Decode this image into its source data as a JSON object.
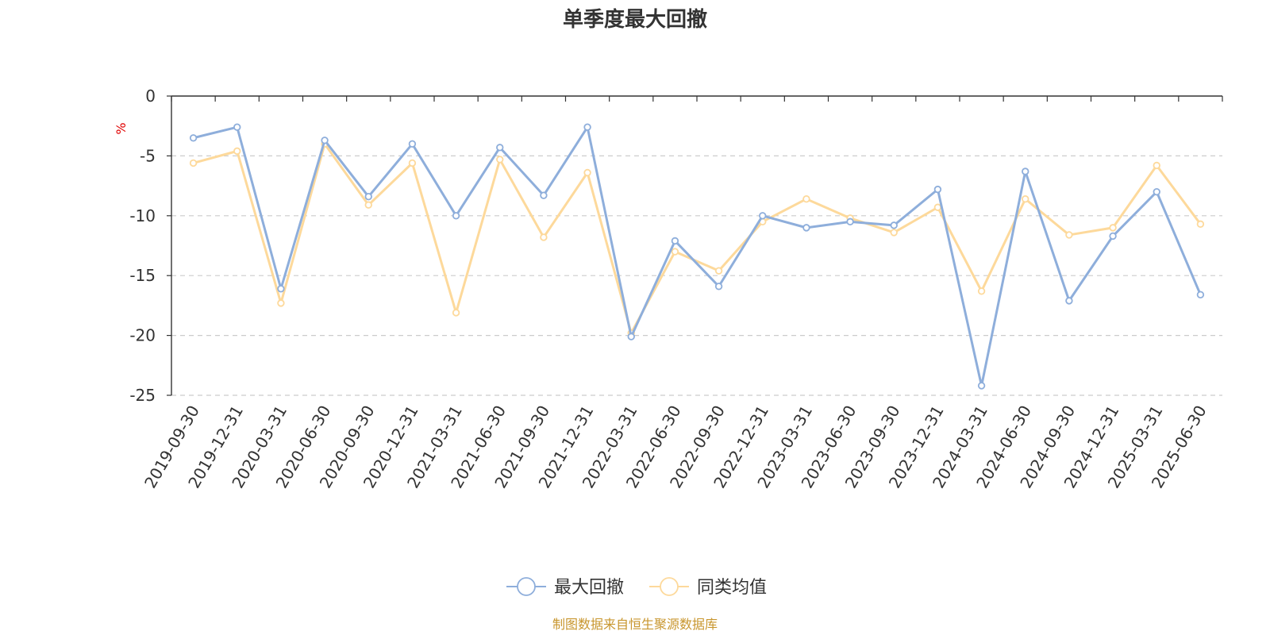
{
  "chart_data": {
    "type": "line",
    "title": "单季度最大回撤",
    "ylabel": "%",
    "ylim": [
      -25,
      0
    ],
    "yticks": [
      0,
      -5,
      -10,
      -15,
      -20,
      -25
    ],
    "ytick_labels": [
      "0",
      "-5",
      "-10",
      "-15",
      "-20",
      "-25"
    ],
    "grid": true,
    "legend_position": "bottom-center",
    "categories": [
      "2019-09-30",
      "2019-12-31",
      "2020-03-31",
      "2020-06-30",
      "2020-09-30",
      "2020-12-31",
      "2021-03-31",
      "2021-06-30",
      "2021-09-30",
      "2021-12-31",
      "2022-03-31",
      "2022-06-30",
      "2022-09-30",
      "2022-12-31",
      "2023-03-31",
      "2023-06-30",
      "2023-09-30",
      "2023-12-31",
      "2024-03-31",
      "2024-06-30",
      "2024-09-30",
      "2024-12-31",
      "2025-03-31",
      "2025-06-30"
    ],
    "series": [
      {
        "name": "最大回撤",
        "color": "#8eaedb",
        "values": [
          -3.5,
          -2.6,
          -16.1,
          -3.7,
          -8.4,
          -4.0,
          -10.0,
          -4.3,
          -8.3,
          -2.6,
          -20.1,
          -12.1,
          -15.9,
          -10.0,
          -11.0,
          -10.5,
          -10.8,
          -7.8,
          -24.2,
          -6.3,
          -17.1,
          -11.7,
          -8.0,
          -16.6
        ]
      },
      {
        "name": "同类均值",
        "color": "#fdd99b",
        "values": [
          -5.6,
          -4.6,
          -17.3,
          -4.0,
          -9.1,
          -5.6,
          -18.1,
          -5.3,
          -11.8,
          -6.4,
          -19.8,
          -13.0,
          -14.6,
          -10.5,
          -8.6,
          -10.2,
          -11.4,
          -9.3,
          -16.3,
          -8.6,
          -11.6,
          -11.0,
          -5.8,
          -10.7
        ]
      }
    ],
    "source": "制图数据来自恒生聚源数据库"
  }
}
